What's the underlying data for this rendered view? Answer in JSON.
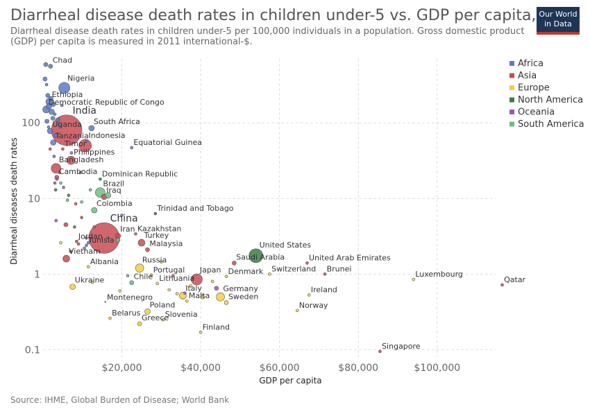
{
  "header": {
    "title": "Diarrheal disease death rates in children under-5 vs. GDP per capita, 2016",
    "subtitle": "Diarrheal disease death rates in children under-5 per 100,000 individuals in a population. Gross domestic product (GDP) per capita is measured in 2011 international-$.",
    "logo_line1": "Our World",
    "logo_line2": "in Data"
  },
  "footer": {
    "source": "Source: IHME, Global Burden of Disease; World Bank"
  },
  "colors": {
    "Africa": "#5b7bc4",
    "Asia": "#c94c55",
    "Europe": "#f4d03f",
    "North America": "#3d7d45",
    "Oceania": "#a653b3",
    "South America": "#6cbf84"
  },
  "chart_data": {
    "type": "scatter",
    "xlabel": "GDP per capita",
    "ylabel": "Diarrheal diseases death rates",
    "x_scale": "linear",
    "y_scale": "log",
    "xlim": [
      0,
      115000
    ],
    "ylim": [
      0.08,
      700
    ],
    "x_ticks": [
      20000,
      40000,
      60000,
      80000,
      100000
    ],
    "x_tick_labels": [
      "$20,000",
      "$40,000",
      "$60,000",
      "$80,000",
      "$100,000"
    ],
    "y_ticks": [
      0.1,
      1,
      10,
      100
    ],
    "y_tick_labels": [
      "0.1",
      "1",
      "10",
      "100"
    ],
    "grid": true,
    "legend_position": "right",
    "legend": [
      "Africa",
      "Asia",
      "Europe",
      "North America",
      "Oceania",
      "South America"
    ],
    "points": [
      {
        "label": "Chad",
        "continent": "Africa",
        "x": 1900,
        "y": 560,
        "size": 3
      },
      {
        "label": "Nigeria",
        "continent": "Africa",
        "x": 5400,
        "y": 290,
        "size": 8
      },
      {
        "label": "Ethiopia",
        "continent": "Africa",
        "x": 1600,
        "y": 190,
        "size": 5
      },
      {
        "label": "Democratic Republic of Congo",
        "continent": "Africa",
        "x": 800,
        "y": 150,
        "size": 5
      },
      {
        "label": "India",
        "continent": "Asia",
        "x": 6000,
        "y": 80,
        "size": 22
      },
      {
        "label": "Uganda",
        "continent": "Africa",
        "x": 1800,
        "y": 78,
        "size": 4
      },
      {
        "label": "South Africa",
        "continent": "Africa",
        "x": 12300,
        "y": 85,
        "size": 4
      },
      {
        "label": "Indonesia",
        "continent": "Asia",
        "x": 10700,
        "y": 50,
        "size": 9
      },
      {
        "label": "Tanzania",
        "continent": "Africa",
        "x": 2600,
        "y": 55,
        "size": 4
      },
      {
        "label": "Timor",
        "continent": "Asia",
        "x": 5000,
        "y": 45,
        "size": 2
      },
      {
        "label": "Equatorial Guinea",
        "continent": "Africa",
        "x": 22500,
        "y": 47,
        "size": 2
      },
      {
        "label": "Philippines",
        "continent": "Asia",
        "x": 7100,
        "y": 32,
        "size": 6
      },
      {
        "label": "Bangladesh",
        "continent": "Asia",
        "x": 3300,
        "y": 25,
        "size": 7
      },
      {
        "label": "Cambodia",
        "continent": "Asia",
        "x": 3500,
        "y": 19,
        "size": 3
      },
      {
        "label": "Dominican Republic",
        "continent": "North America",
        "x": 14500,
        "y": 18,
        "size": 2
      },
      {
        "label": "Brazil",
        "continent": "South America",
        "x": 14500,
        "y": 12,
        "size": 7
      },
      {
        "label": "Iraq",
        "continent": "Asia",
        "x": 15500,
        "y": 10.5,
        "size": 4
      },
      {
        "label": "Colombia",
        "continent": "South America",
        "x": 13000,
        "y": 7,
        "size": 4
      },
      {
        "label": "Trinidad and Tobago",
        "continent": "North America",
        "x": 28500,
        "y": 6.3,
        "size": 2
      },
      {
        "label": "Kazakhstan",
        "continent": "Asia",
        "x": 23500,
        "y": 3.4,
        "size": 2
      },
      {
        "label": "China",
        "continent": "Asia",
        "x": 15500,
        "y": 3.0,
        "size": 22
      },
      {
        "label": "Iran",
        "continent": "Asia",
        "x": 19000,
        "y": 3.2,
        "size": 4
      },
      {
        "label": "Turkey",
        "continent": "Asia",
        "x": 25000,
        "y": 2.6,
        "size": 5
      },
      {
        "label": "Jordan",
        "continent": "Asia",
        "x": 8500,
        "y": 2.7,
        "size": 2
      },
      {
        "label": "Malaysia",
        "continent": "Asia",
        "x": 26500,
        "y": 2.1,
        "size": 3
      },
      {
        "label": "Tunisia",
        "continent": "Africa",
        "x": 11000,
        "y": 2.4,
        "size": 2
      },
      {
        "label": "Vietnam",
        "continent": "Asia",
        "x": 5900,
        "y": 1.6,
        "size": 5
      },
      {
        "label": "Albania",
        "continent": "Europe",
        "x": 11500,
        "y": 1.25,
        "size": 2
      },
      {
        "label": "Russia",
        "continent": "Europe",
        "x": 24500,
        "y": 1.2,
        "size": 6
      },
      {
        "label": "Portugal",
        "continent": "Europe",
        "x": 27500,
        "y": 0.97,
        "size": 2
      },
      {
        "label": "United States",
        "continent": "North America",
        "x": 54000,
        "y": 1.75,
        "size": 10
      },
      {
        "label": "Saudi Arabia",
        "continent": "Asia",
        "x": 48500,
        "y": 1.4,
        "size": 3
      },
      {
        "label": "United Arab Emirates",
        "continent": "Asia",
        "x": 67000,
        "y": 1.4,
        "size": 2
      },
      {
        "label": "Denmark",
        "continent": "Europe",
        "x": 46500,
        "y": 0.93,
        "size": 2
      },
      {
        "label": "Switzerland",
        "continent": "Europe",
        "x": 57500,
        "y": 1.0,
        "size": 2
      },
      {
        "label": "Brunei",
        "continent": "Asia",
        "x": 71500,
        "y": 1.0,
        "size": 2
      },
      {
        "label": "Luxembourg",
        "continent": "Europe",
        "x": 94000,
        "y": 0.85,
        "size": 2
      },
      {
        "label": "Qatar",
        "continent": "Asia",
        "x": 116500,
        "y": 0.72,
        "size": 2
      },
      {
        "label": "Ukraine",
        "continent": "Europe",
        "x": 7500,
        "y": 0.68,
        "size": 4
      },
      {
        "label": "Chile",
        "continent": "South America",
        "x": 22500,
        "y": 0.77,
        "size": 3
      },
      {
        "label": "Lithuania",
        "continent": "Europe",
        "x": 29000,
        "y": 0.75,
        "size": 2
      },
      {
        "label": "Japan",
        "continent": "Asia",
        "x": 39000,
        "y": 0.85,
        "size": 8
      },
      {
        "label": "Germany",
        "continent": "Europe",
        "x": 45000,
        "y": 0.5,
        "size": 6
      },
      {
        "label": "Ireland",
        "continent": "Europe",
        "x": 67500,
        "y": 0.53,
        "size": 2
      },
      {
        "label": "Italy",
        "continent": "Europe",
        "x": 35500,
        "y": 0.52,
        "size": 5
      },
      {
        "label": "Malta",
        "continent": "Europe",
        "x": 36500,
        "y": 0.44,
        "size": 2
      },
      {
        "label": "Sweden",
        "continent": "Europe",
        "x": 46500,
        "y": 0.42,
        "size": 3
      },
      {
        "label": "Montenegro",
        "continent": "Europe",
        "x": 15800,
        "y": 0.43,
        "size": 1
      },
      {
        "label": "Poland",
        "continent": "Europe",
        "x": 26500,
        "y": 0.32,
        "size": 4
      },
      {
        "label": "Norway",
        "continent": "Europe",
        "x": 64500,
        "y": 0.33,
        "size": 2
      },
      {
        "label": "Belarus",
        "continent": "Europe",
        "x": 17000,
        "y": 0.26,
        "size": 2
      },
      {
        "label": "Slovenia",
        "continent": "Europe",
        "x": 30500,
        "y": 0.25,
        "size": 2
      },
      {
        "label": "Greece",
        "continent": "Europe",
        "x": 24500,
        "y": 0.22,
        "size": 3
      },
      {
        "label": "Finland",
        "continent": "Europe",
        "x": 40000,
        "y": 0.17,
        "size": 2
      },
      {
        "label": "Singapore",
        "continent": "Asia",
        "x": 85500,
        "y": 0.095,
        "size": 2
      },
      {
        "label": "",
        "continent": "Africa",
        "x": 700,
        "y": 590,
        "size": 3
      },
      {
        "label": "",
        "continent": "Africa",
        "x": 500,
        "y": 380,
        "size": 3
      },
      {
        "label": "",
        "continent": "Africa",
        "x": 900,
        "y": 320,
        "size": 2
      },
      {
        "label": "",
        "continent": "Africa",
        "x": 1200,
        "y": 230,
        "size": 3
      },
      {
        "label": "",
        "continent": "Africa",
        "x": 2000,
        "y": 210,
        "size": 3
      },
      {
        "label": "",
        "continent": "Africa",
        "x": 2600,
        "y": 175,
        "size": 3
      },
      {
        "label": "",
        "continent": "Africa",
        "x": 1500,
        "y": 165,
        "size": 4
      },
      {
        "label": "",
        "continent": "Africa",
        "x": 2200,
        "y": 140,
        "size": 4
      },
      {
        "label": "",
        "continent": "Africa",
        "x": 3000,
        "y": 130,
        "size": 2
      },
      {
        "label": "",
        "continent": "Africa",
        "x": 2500,
        "y": 115,
        "size": 3
      },
      {
        "label": "",
        "continent": "Africa",
        "x": 1000,
        "y": 105,
        "size": 3
      },
      {
        "label": "",
        "continent": "Africa",
        "x": 3800,
        "y": 110,
        "size": 3
      },
      {
        "label": "",
        "continent": "Africa",
        "x": 4200,
        "y": 95,
        "size": 3
      },
      {
        "label": "",
        "continent": "Africa",
        "x": 1400,
        "y": 88,
        "size": 2
      },
      {
        "label": "",
        "continent": "Africa",
        "x": 4800,
        "y": 170,
        "size": 2
      },
      {
        "label": "",
        "continent": "Africa",
        "x": 3200,
        "y": 68,
        "size": 3
      },
      {
        "label": "",
        "continent": "Africa",
        "x": 2800,
        "y": 36,
        "size": 2
      },
      {
        "label": "",
        "continent": "Africa",
        "x": 7200,
        "y": 40,
        "size": 2
      },
      {
        "label": "",
        "continent": "Africa",
        "x": 9500,
        "y": 22,
        "size": 2
      },
      {
        "label": "",
        "continent": "Africa",
        "x": 5200,
        "y": 14,
        "size": 2
      },
      {
        "label": "",
        "continent": "Africa",
        "x": 11000,
        "y": 58,
        "size": 2
      },
      {
        "label": "",
        "continent": "Africa",
        "x": 20000,
        "y": 6,
        "size": 2
      },
      {
        "label": "",
        "continent": "Africa",
        "x": 11500,
        "y": 2.6,
        "size": 2
      },
      {
        "label": "",
        "continent": "Africa",
        "x": 10500,
        "y": 2.2,
        "size": 2
      },
      {
        "label": "",
        "continent": "Asia",
        "x": 1800,
        "y": 45,
        "size": 2
      },
      {
        "label": "",
        "continent": "Asia",
        "x": 4200,
        "y": 22,
        "size": 2
      },
      {
        "label": "",
        "continent": "Asia",
        "x": 3000,
        "y": 16,
        "size": 2
      },
      {
        "label": "",
        "continent": "Asia",
        "x": 5800,
        "y": 4.5,
        "size": 3
      },
      {
        "label": "",
        "continent": "Asia",
        "x": 8300,
        "y": 8.5,
        "size": 2
      },
      {
        "label": "",
        "continent": "Asia",
        "x": 9800,
        "y": 5.6,
        "size": 2
      },
      {
        "label": "",
        "continent": "Asia",
        "x": 13000,
        "y": 4.2,
        "size": 2
      },
      {
        "label": "",
        "continent": "Asia",
        "x": 9000,
        "y": 2.5,
        "size": 2
      },
      {
        "label": "",
        "continent": "Asia",
        "x": 7000,
        "y": 2.0,
        "size": 2
      },
      {
        "label": "",
        "continent": "Asia",
        "x": 33000,
        "y": 0.95,
        "size": 2
      },
      {
        "label": "",
        "continent": "Asia",
        "x": 38000,
        "y": 0.9,
        "size": 2
      },
      {
        "label": "",
        "continent": "Europe",
        "x": 4500,
        "y": 2.6,
        "size": 2
      },
      {
        "label": "",
        "continent": "Europe",
        "x": 12500,
        "y": 0.78,
        "size": 2
      },
      {
        "label": "",
        "continent": "Europe",
        "x": 19500,
        "y": 0.6,
        "size": 2
      },
      {
        "label": "",
        "continent": "Europe",
        "x": 32000,
        "y": 0.62,
        "size": 2
      },
      {
        "label": "",
        "continent": "Europe",
        "x": 37500,
        "y": 0.7,
        "size": 2
      },
      {
        "label": "",
        "continent": "Europe",
        "x": 40500,
        "y": 0.5,
        "size": 3
      },
      {
        "label": "",
        "continent": "Europe",
        "x": 43000,
        "y": 0.8,
        "size": 2
      },
      {
        "label": "",
        "continent": "Europe",
        "x": 34000,
        "y": 0.55,
        "size": 2
      },
      {
        "label": "",
        "continent": "Europe",
        "x": 30000,
        "y": 1.45,
        "size": 2
      },
      {
        "label": "",
        "continent": "North America",
        "x": 3200,
        "y": 13,
        "size": 2
      },
      {
        "label": "",
        "continent": "North America",
        "x": 6500,
        "y": 11,
        "size": 2
      },
      {
        "label": "",
        "continent": "North America",
        "x": 8000,
        "y": 4.2,
        "size": 2
      },
      {
        "label": "",
        "continent": "North America",
        "x": 16500,
        "y": 3.0,
        "size": 2
      },
      {
        "label": "",
        "continent": "Oceania",
        "x": 3500,
        "y": 18,
        "size": 2
      },
      {
        "label": "",
        "continent": "Oceania",
        "x": 3300,
        "y": 5.1,
        "size": 2
      },
      {
        "label": "",
        "continent": "Oceania",
        "x": 44000,
        "y": 0.65,
        "size": 3
      },
      {
        "label": "",
        "continent": "Oceania",
        "x": 36000,
        "y": 0.56,
        "size": 2
      },
      {
        "label": "",
        "continent": "Oceania",
        "x": 11000,
        "y": 3.0,
        "size": 2
      },
      {
        "label": "",
        "continent": "South America",
        "x": 4500,
        "y": 16,
        "size": 2
      },
      {
        "label": "",
        "continent": "South America",
        "x": 6200,
        "y": 9.5,
        "size": 2
      },
      {
        "label": "",
        "continent": "South America",
        "x": 9800,
        "y": 9.0,
        "size": 2
      },
      {
        "label": "",
        "continent": "South America",
        "x": 12000,
        "y": 13,
        "size": 2
      },
      {
        "label": "",
        "continent": "South America",
        "x": 16500,
        "y": 11,
        "size": 4
      },
      {
        "label": "",
        "continent": "South America",
        "x": 19000,
        "y": 2.8,
        "size": 3
      },
      {
        "label": "",
        "continent": "South America",
        "x": 21500,
        "y": 0.95,
        "size": 2
      }
    ]
  }
}
